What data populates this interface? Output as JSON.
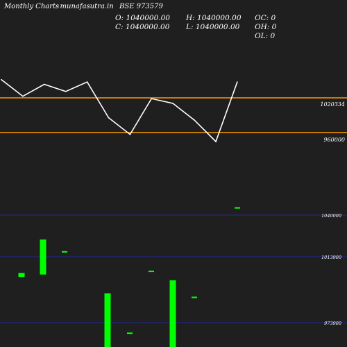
{
  "header": {
    "site": "Monthly Charts",
    "brand": "- munafasutra.in",
    "symbol": "BSE 973579"
  },
  "ohlc": {
    "open": "O: 1040000.00",
    "high": "H: 1040000.00",
    "close": "C: 1040000.00",
    "low": "L: 1040000.00",
    "oc": "OC: 0",
    "oh": "OH: 0",
    "ol": "OL: 0"
  },
  "colors": {
    "background": "#1f1f1f",
    "price_line": "#ffffff",
    "level_line": "#ff9900",
    "volume_bar": "#00ff00",
    "grid_line": "#2a2ac0"
  },
  "chart_data": [
    {
      "type": "line",
      "name": "price",
      "values": [
        1028000,
        1021000,
        1026000,
        1023000,
        1027000,
        1012000,
        1005000,
        1020000,
        1018000,
        1011000,
        1002000,
        1027000
      ],
      "levels": [
        {
          "value": 1020334,
          "label": "1020334"
        },
        {
          "value": 960000,
          "label": "960000"
        }
      ],
      "ylim": [
        995000,
        1035000
      ]
    },
    {
      "type": "bar",
      "name": "volume",
      "grid": [
        {
          "value": 1040000,
          "label": "1040000"
        },
        {
          "value": 1013900,
          "label": "1013900"
        },
        {
          "value": 973900,
          "label": "973900"
        }
      ],
      "bars": [
        {
          "low": 1002000,
          "high": 1004500
        },
        {
          "low": 1003500,
          "high": 1025000
        },
        {
          "low": 1017000,
          "high": 1017900
        },
        {
          "low": 955000,
          "high": 992000
        },
        {
          "low": 967000,
          "high": 967900
        },
        {
          "low": 1005000,
          "high": 1005900
        },
        {
          "low": 955000,
          "high": 1000000
        },
        {
          "low": 989000,
          "high": 989900
        },
        {
          "low": 1044000,
          "high": 1044900
        }
      ],
      "ylim": [
        955000,
        1060000
      ]
    }
  ]
}
